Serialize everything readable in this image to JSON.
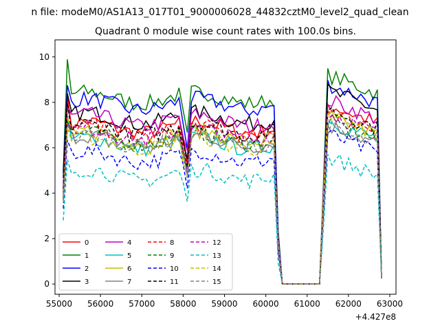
{
  "suptitle": "n file: modeM0/AS1A13_017T01_9000006028_44832cztM0_level2_quad_clean",
  "chart_data": {
    "type": "line",
    "title": "Quadrant 0 module wise count rates with 100.0s bins.",
    "xlabel": "",
    "ylabel": "",
    "x_offset_label": "+4.427e8",
    "xlim": [
      54900,
      63150
    ],
    "ylim": [
      -0.45,
      10.75
    ],
    "xticks": [
      55000,
      56000,
      57000,
      58000,
      59000,
      60000,
      61000,
      62000,
      63000
    ],
    "xtick_labels": [
      "55000",
      "56000",
      "57000",
      "58000",
      "59000",
      "60000",
      "61000",
      "62000",
      "63000"
    ],
    "yticks": [
      0,
      2,
      4,
      6,
      8,
      10
    ],
    "ytick_labels": [
      "0",
      "2",
      "4",
      "6",
      "8",
      "10"
    ],
    "legend_position": "lower-left",
    "legend_columns": 4,
    "gap": {
      "drop_start": 60300,
      "drop_end": 60400,
      "rise_start": 61300,
      "rise_end": 61500
    },
    "x_start": 55100,
    "x_end": 62800,
    "x_step": 100,
    "series": [
      {
        "name": "0",
        "color": "#ff0000",
        "dashed": false,
        "on_level": 6.9,
        "off_level": 7.9,
        "peak": 8.0
      },
      {
        "name": "1",
        "color": "#008000",
        "dashed": false,
        "on_level": 8.2,
        "off_level": 9.2,
        "peak": 9.8
      },
      {
        "name": "2",
        "color": "#0000ff",
        "dashed": false,
        "on_level": 7.9,
        "off_level": 8.8,
        "peak": 8.6
      },
      {
        "name": "3",
        "color": "#000000",
        "dashed": false,
        "on_level": 7.3,
        "off_level": 8.5,
        "peak": 8.1
      },
      {
        "name": "4",
        "color": "#bf00bf",
        "dashed": false,
        "on_level": 7.2,
        "off_level": 8.1,
        "peak": 7.7
      },
      {
        "name": "5",
        "color": "#00bfbf",
        "dashed": false,
        "on_level": 6.2,
        "off_level": 7.2,
        "peak": 7.1
      },
      {
        "name": "6",
        "color": "#bfbf00",
        "dashed": false,
        "on_level": 6.5,
        "off_level": 7.4,
        "peak": 7.0
      },
      {
        "name": "7",
        "color": "#808080",
        "dashed": false,
        "on_level": 6.3,
        "off_level": 7.0,
        "peak": 6.8
      },
      {
        "name": "8",
        "color": "#ff0000",
        "dashed": true,
        "on_level": 6.7,
        "off_level": 7.6,
        "peak": 7.6
      },
      {
        "name": "9",
        "color": "#008000",
        "dashed": true,
        "on_level": 6.4,
        "off_level": 7.2,
        "peak": 7.2
      },
      {
        "name": "10",
        "color": "#0000ff",
        "dashed": true,
        "on_level": 5.6,
        "off_level": 6.6,
        "peak": 6.3
      },
      {
        "name": "11",
        "color": "#000000",
        "dashed": true,
        "on_level": 6.8,
        "off_level": 7.7,
        "peak": 7.7
      },
      {
        "name": "12",
        "color": "#bf00bf",
        "dashed": true,
        "on_level": 6.6,
        "off_level": 7.5,
        "peak": 7.3
      },
      {
        "name": "13",
        "color": "#00bfbf",
        "dashed": true,
        "on_level": 4.8,
        "off_level": 5.6,
        "peak": 5.2
      },
      {
        "name": "14",
        "color": "#bfbf00",
        "dashed": true,
        "on_level": 6.2,
        "off_level": 7.4,
        "peak": 6.9
      },
      {
        "name": "15",
        "color": "#808080",
        "dashed": true,
        "on_level": 6.3,
        "off_level": 6.9,
        "peak": 7.0
      }
    ]
  }
}
